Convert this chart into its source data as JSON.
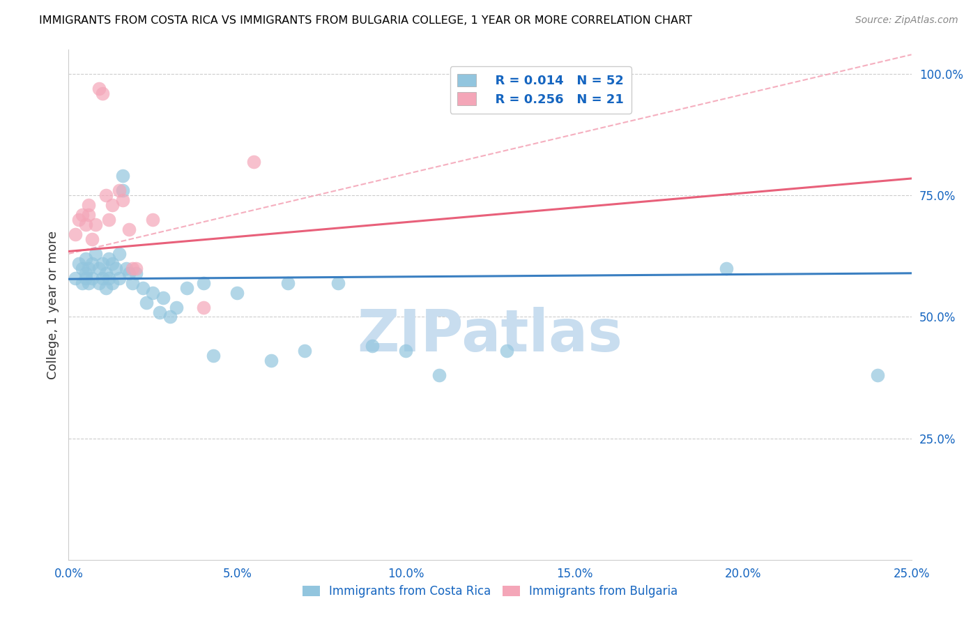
{
  "title": "IMMIGRANTS FROM COSTA RICA VS IMMIGRANTS FROM BULGARIA COLLEGE, 1 YEAR OR MORE CORRELATION CHART",
  "source": "Source: ZipAtlas.com",
  "ylabel": "College, 1 year or more",
  "x_tick_labels": [
    "0.0%",
    "5.0%",
    "10.0%",
    "15.0%",
    "20.0%",
    "25.0%"
  ],
  "y_tick_labels_right": [
    "100.0%",
    "75.0%",
    "50.0%",
    "25.0%"
  ],
  "xlim": [
    0.0,
    0.25
  ],
  "ylim": [
    0.0,
    1.05
  ],
  "watermark": "ZIPatlas",
  "blue_scatter_x": [
    0.002,
    0.003,
    0.004,
    0.004,
    0.005,
    0.005,
    0.005,
    0.006,
    0.006,
    0.007,
    0.007,
    0.008,
    0.009,
    0.009,
    0.01,
    0.01,
    0.011,
    0.011,
    0.012,
    0.012,
    0.013,
    0.013,
    0.014,
    0.015,
    0.015,
    0.016,
    0.016,
    0.017,
    0.018,
    0.019,
    0.02,
    0.022,
    0.023,
    0.025,
    0.027,
    0.028,
    0.03,
    0.032,
    0.035,
    0.04,
    0.043,
    0.05,
    0.06,
    0.065,
    0.07,
    0.08,
    0.09,
    0.1,
    0.11,
    0.13,
    0.195,
    0.24
  ],
  "blue_scatter_y": [
    0.58,
    0.61,
    0.6,
    0.57,
    0.59,
    0.62,
    0.58,
    0.6,
    0.57,
    0.61,
    0.58,
    0.63,
    0.6,
    0.57,
    0.61,
    0.58,
    0.59,
    0.56,
    0.62,
    0.58,
    0.61,
    0.57,
    0.6,
    0.63,
    0.58,
    0.79,
    0.76,
    0.6,
    0.59,
    0.57,
    0.59,
    0.56,
    0.53,
    0.55,
    0.51,
    0.54,
    0.5,
    0.52,
    0.56,
    0.57,
    0.42,
    0.55,
    0.41,
    0.57,
    0.43,
    0.57,
    0.44,
    0.43,
    0.38,
    0.43,
    0.6,
    0.38
  ],
  "pink_scatter_x": [
    0.002,
    0.003,
    0.004,
    0.005,
    0.006,
    0.006,
    0.007,
    0.008,
    0.009,
    0.01,
    0.011,
    0.012,
    0.013,
    0.015,
    0.016,
    0.018,
    0.019,
    0.02,
    0.025,
    0.04,
    0.055
  ],
  "pink_scatter_y": [
    0.67,
    0.7,
    0.71,
    0.69,
    0.73,
    0.71,
    0.66,
    0.69,
    0.97,
    0.96,
    0.75,
    0.7,
    0.73,
    0.76,
    0.74,
    0.68,
    0.6,
    0.6,
    0.7,
    0.52,
    0.82
  ],
  "blue_line_x": [
    0.0,
    0.25
  ],
  "blue_line_y": [
    0.578,
    0.59
  ],
  "pink_line_x": [
    0.0,
    0.25
  ],
  "pink_line_y": [
    0.635,
    0.785
  ],
  "dashed_line_x": [
    0.0,
    0.25
  ],
  "dashed_line_y": [
    0.63,
    1.04
  ],
  "legend_blue_r": "R = 0.014",
  "legend_blue_n": "N = 52",
  "legend_pink_r": "R = 0.256",
  "legend_pink_n": "N = 21",
  "blue_color": "#92C5DE",
  "pink_color": "#F4A6B8",
  "blue_line_color": "#3A7FC1",
  "pink_line_color": "#E8607A",
  "dashed_line_color": "#F4A6B8",
  "legend_r_color": "#1565C0",
  "legend_n_color": "#1565C0",
  "axis_label_color": "#1565C0",
  "title_color": "#000000",
  "watermark_color": "#C8DDEF",
  "grid_color": "#CCCCCC",
  "source_color": "#888888"
}
